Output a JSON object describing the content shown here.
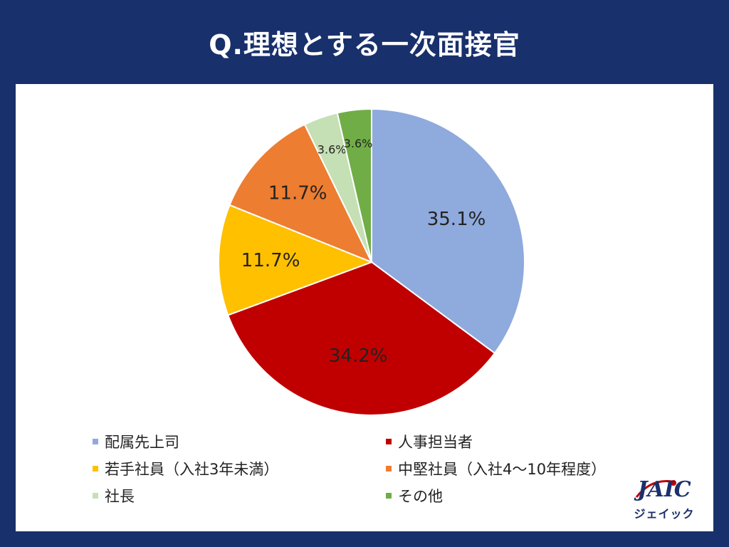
{
  "title": "Q.理想とする一次面接官",
  "chart_data": {
    "type": "pie",
    "categories": [
      "配属先上司",
      "人事担当者",
      "若手社員（入社3年未満）",
      "中堅社員（入社4～10年程度）",
      "社長",
      "その他"
    ],
    "values": [
      35.1,
      34.2,
      11.7,
      11.7,
      3.6,
      3.6
    ],
    "labels": [
      "35.1%",
      "34.2%",
      "11.7%",
      "11.7%",
      "3.6%",
      "3.6%"
    ],
    "colors": [
      "#8faadc",
      "#c00000",
      "#ffc000",
      "#ed7d31",
      "#c5e0b4",
      "#70ad47"
    ],
    "legend_position": "bottom"
  },
  "logo": {
    "text": "JAIC",
    "kana": "ジェイック"
  }
}
